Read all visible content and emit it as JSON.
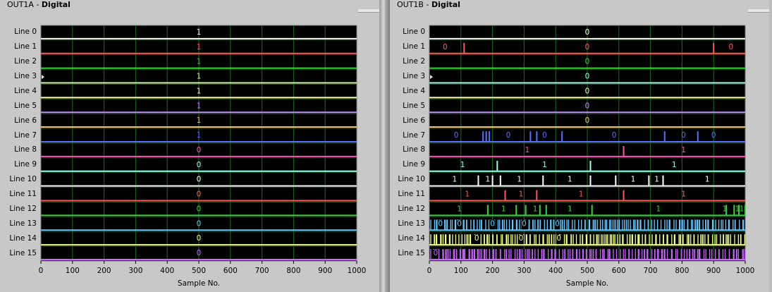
{
  "left_panel": {
    "title_prefix": "OUT1A - ",
    "title_suffix": "Digital"
  },
  "right_panel": {
    "title_prefix": "OUT1B - ",
    "title_suffix": "Digital"
  },
  "chart_data": [
    {
      "type": "digital-waveform",
      "xlabel": "Sample No.",
      "xlim": [
        0,
        1000
      ],
      "xticks": [
        0,
        100,
        200,
        300,
        400,
        500,
        600,
        700,
        800,
        900,
        1000
      ],
      "grid": true,
      "lines": [
        {
          "name": "Line 0",
          "color": "#ffffff",
          "transitions": [],
          "labels": [
            {
              "x": 500,
              "text": "1"
            }
          ],
          "level": 1
        },
        {
          "name": "Line 1",
          "color": "#ff5a5a",
          "transitions": [],
          "labels": [
            {
              "x": 500,
              "text": "1"
            }
          ],
          "level": 1
        },
        {
          "name": "Line 2",
          "color": "#3cd23c",
          "transitions": [],
          "labels": [
            {
              "x": 500,
              "text": "1"
            }
          ],
          "level": 1
        },
        {
          "name": "Line 3",
          "color": "#c8ffa0",
          "transitions": [],
          "labels": [
            {
              "x": 500,
              "text": "1"
            }
          ],
          "level": 1
        },
        {
          "name": "Line 4",
          "color": "#ffffc0",
          "transitions": [],
          "labels": [
            {
              "x": 500,
              "text": "1"
            }
          ],
          "level": 1
        },
        {
          "name": "Line 5",
          "color": "#c88cff",
          "transitions": [],
          "labels": [
            {
              "x": 500,
              "text": "1"
            }
          ],
          "level": 1
        },
        {
          "name": "Line 6",
          "color": "#ffc880",
          "transitions": [],
          "labels": [
            {
              "x": 500,
              "text": "1"
            }
          ],
          "level": 1
        },
        {
          "name": "Line 7",
          "color": "#5a6eff",
          "transitions": [],
          "labels": [
            {
              "x": 500,
              "text": "1"
            }
          ],
          "level": 1
        },
        {
          "name": "Line 8",
          "color": "#ff50b4",
          "transitions": [],
          "labels": [
            {
              "x": 500,
              "text": "0"
            }
          ],
          "level": 0
        },
        {
          "name": "Line 9",
          "color": "#a0ffe6",
          "transitions": [],
          "labels": [
            {
              "x": 500,
              "text": "0"
            }
          ],
          "level": 0
        },
        {
          "name": "Line 10",
          "color": "#ffffff",
          "transitions": [],
          "labels": [
            {
              "x": 500,
              "text": "0"
            }
          ],
          "level": 0
        },
        {
          "name": "Line 11",
          "color": "#ff5a5a",
          "transitions": [],
          "labels": [
            {
              "x": 500,
              "text": "0"
            }
          ],
          "level": 0
        },
        {
          "name": "Line 12",
          "color": "#3cd23c",
          "transitions": [],
          "labels": [
            {
              "x": 500,
              "text": "0"
            }
          ],
          "level": 0
        },
        {
          "name": "Line 13",
          "color": "#64c8ff",
          "transitions": [],
          "labels": [
            {
              "x": 500,
              "text": "0"
            }
          ],
          "level": 0
        },
        {
          "name": "Line 14",
          "color": "#f0ff80",
          "transitions": [],
          "labels": [
            {
              "x": 500,
              "text": "0"
            }
          ],
          "level": 0
        },
        {
          "name": "Line 15",
          "color": "#c864ff",
          "transitions": [],
          "labels": [
            {
              "x": 500,
              "text": "0"
            }
          ],
          "level": 0
        }
      ]
    },
    {
      "type": "digital-waveform",
      "xlabel": "Sample No.",
      "xlim": [
        0,
        1000
      ],
      "xticks": [
        0,
        100,
        200,
        300,
        400,
        500,
        600,
        700,
        800,
        900,
        1000
      ],
      "grid": true,
      "lines": [
        {
          "name": "Line 0",
          "color": "#ffffff",
          "transitions": [],
          "labels": [
            {
              "x": 500,
              "text": "0"
            }
          ]
        },
        {
          "name": "Line 1",
          "color": "#ff5a5a",
          "transitions": [
            110,
            900
          ],
          "labels": [
            {
              "x": 50,
              "text": "0"
            },
            {
              "x": 500,
              "text": "0"
            },
            {
              "x": 955,
              "text": "0"
            }
          ]
        },
        {
          "name": "Line 2",
          "color": "#3cd23c",
          "transitions": [],
          "labels": [
            {
              "x": 500,
              "text": "0"
            }
          ]
        },
        {
          "name": "Line 3",
          "color": "#a0ffe6",
          "transitions": [],
          "labels": [
            {
              "x": 500,
              "text": "0"
            }
          ]
        },
        {
          "name": "Line 4",
          "color": "#ffffc0",
          "transitions": [],
          "labels": [
            {
              "x": 500,
              "text": "0"
            }
          ]
        },
        {
          "name": "Line 5",
          "color": "#c88cff",
          "transitions": [],
          "labels": [
            {
              "x": 500,
              "text": "0"
            }
          ]
        },
        {
          "name": "Line 6",
          "color": "#ffc880",
          "transitions": [],
          "labels": [
            {
              "x": 500,
              "text": "0"
            }
          ]
        },
        {
          "name": "Line 7",
          "color": "#5a6eff",
          "transitions": [
            170,
            180,
            190,
            320,
            340,
            420,
            745,
            850
          ],
          "labels": [
            {
              "x": 85,
              "text": "0"
            },
            {
              "x": 250,
              "text": "0"
            },
            {
              "x": 365,
              "text": "0"
            },
            {
              "x": 585,
              "text": "0"
            },
            {
              "x": 805,
              "text": "0"
            },
            {
              "x": 900,
              "text": "0"
            }
          ]
        },
        {
          "name": "Line 8",
          "color": "#ff50b4",
          "transitions": [
            615
          ],
          "labels": [
            {
              "x": 310,
              "text": "1"
            },
            {
              "x": 805,
              "text": "1"
            }
          ]
        },
        {
          "name": "Line 9",
          "color": "#a0ffe6",
          "transitions": [
            215,
            510
          ],
          "labels": [
            {
              "x": 105,
              "text": "1"
            },
            {
              "x": 365,
              "text": "1"
            },
            {
              "x": 775,
              "text": "1"
            }
          ]
        },
        {
          "name": "Line 10",
          "color": "#ffffff",
          "transitions": [
            155,
            200,
            225,
            360,
            510,
            590,
            695,
            740
          ],
          "labels": [
            {
              "x": 80,
              "text": "1"
            },
            {
              "x": 185,
              "text": "1"
            },
            {
              "x": 285,
              "text": "1"
            },
            {
              "x": 445,
              "text": "1"
            },
            {
              "x": 645,
              "text": "1"
            },
            {
              "x": 720,
              "text": "1"
            },
            {
              "x": 880,
              "text": "1"
            }
          ]
        },
        {
          "name": "Line 11",
          "color": "#ff5a5a",
          "transitions": [
            240,
            340,
            615
          ],
          "labels": [
            {
              "x": 120,
              "text": "1"
            },
            {
              "x": 290,
              "text": "1"
            },
            {
              "x": 480,
              "text": "1"
            },
            {
              "x": 805,
              "text": "1"
            }
          ]
        },
        {
          "name": "Line 12",
          "color": "#3cd23c",
          "transitions": [
            185,
            275,
            305,
            350,
            370,
            515,
            940,
            965,
            980,
            1000
          ],
          "labels": [
            {
              "x": 95,
              "text": "1"
            },
            {
              "x": 235,
              "text": "1"
            },
            {
              "x": 335,
              "text": "1"
            },
            {
              "x": 445,
              "text": "1"
            },
            {
              "x": 725,
              "text": "1"
            },
            {
              "x": 935,
              "text": "1"
            },
            {
              "x": 975,
              "text": "1"
            },
            {
              "x": 1000,
              "text": "1"
            }
          ]
        },
        {
          "name": "Line 13",
          "color": "#64c8ff",
          "dense": true,
          "seed": 13,
          "labels": [
            {
              "x": 35,
              "text": "0"
            },
            {
              "x": 95,
              "text": "0"
            },
            {
              "x": 200,
              "text": "0"
            },
            {
              "x": 300,
              "text": "0"
            },
            {
              "x": 405,
              "text": "0"
            }
          ]
        },
        {
          "name": "Line 14",
          "color": "#f0ff80",
          "dense": true,
          "seed": 14,
          "labels": [
            {
              "x": 150,
              "text": "0"
            },
            {
              "x": 290,
              "text": "0"
            },
            {
              "x": 410,
              "text": "0"
            }
          ]
        },
        {
          "name": "Line 15",
          "color": "#c864ff",
          "dense": true,
          "seed": 15,
          "labels": [
            {
              "x": 20,
              "text": "0"
            }
          ]
        }
      ]
    }
  ]
}
